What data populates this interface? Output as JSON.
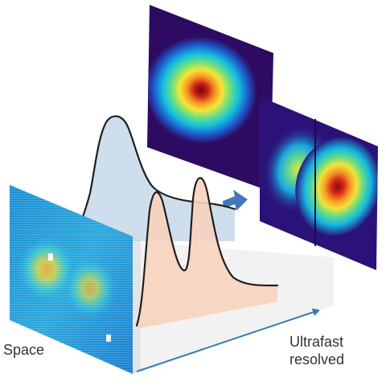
{
  "labels": {
    "space": "Space",
    "ultrafast_line1": "Ultrafast",
    "ultrafast_line2": "resolved"
  },
  "colors": {
    "back_curve_fill": "#c5d8ea",
    "front_curve_fill": "#f7d3bd",
    "curve_stroke": "#1e1e1e",
    "arrow": "#3f78bd",
    "axis": "#3a79b6",
    "colormap": [
      "#2e0b63",
      "#1e56c8",
      "#13c0e0",
      "#6fe07c",
      "#f7e536",
      "#f39423",
      "#c91c18",
      "#6c0808"
    ]
  },
  "icons": {
    "transfer_arrow": "arrow-right-icon"
  }
}
